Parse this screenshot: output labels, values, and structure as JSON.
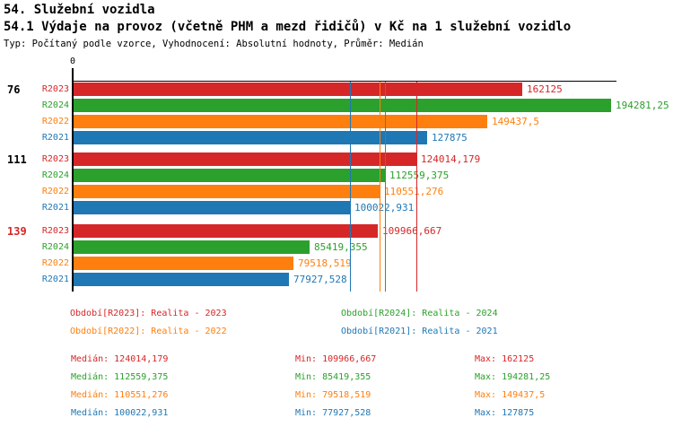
{
  "page": {
    "title": "54. Služební vozidla",
    "subtitle": "54.1 Výdaje na provoz (včetně PHM a mezd řidičů) v Kč na 1 služební vozidlo",
    "type_line": "Typ: Počítaný podle vzorce, Vyhodnocení: Absolutní hodnoty, Průměr: Medián"
  },
  "colors": {
    "R2023": "#d62728",
    "R2024": "#2ca02c",
    "R2022": "#ff7f0e",
    "R2021": "#1f77b4",
    "axis": "#000000",
    "group_label_default": "#000000",
    "group_label_highlight": "#d62728"
  },
  "chart_data": {
    "type": "bar",
    "orientation": "horizontal",
    "x_origin_label": "0",
    "x_range": [
      0,
      194281.25
    ],
    "grid": false,
    "series_order": [
      "R2023",
      "R2024",
      "R2022",
      "R2021"
    ],
    "groups": [
      {
        "label": "76",
        "highlight": false,
        "bars": [
          {
            "series": "R2023",
            "value": 162125,
            "value_label": "162125"
          },
          {
            "series": "R2024",
            "value": 194281.25,
            "value_label": "194281,25"
          },
          {
            "series": "R2022",
            "value": 149437.5,
            "value_label": "149437,5"
          },
          {
            "series": "R2021",
            "value": 127875,
            "value_label": "127875"
          }
        ]
      },
      {
        "label": "111",
        "highlight": false,
        "bars": [
          {
            "series": "R2023",
            "value": 124014.179,
            "value_label": "124014,179"
          },
          {
            "series": "R2024",
            "value": 112559.375,
            "value_label": "112559,375"
          },
          {
            "series": "R2022",
            "value": 110551.276,
            "value_label": "110551,276"
          },
          {
            "series": "R2021",
            "value": 100022.931,
            "value_label": "100022,931"
          }
        ]
      },
      {
        "label": "139",
        "highlight": true,
        "bars": [
          {
            "series": "R2023",
            "value": 109966.667,
            "value_label": "109966,667"
          },
          {
            "series": "R2024",
            "value": 85419.355,
            "value_label": "85419,355"
          },
          {
            "series": "R2022",
            "value": 79518.519,
            "value_label": "79518,519"
          },
          {
            "series": "R2021",
            "value": 77927.528,
            "value_label": "77927,528"
          }
        ]
      }
    ],
    "median_lines": [
      {
        "series": "R2023",
        "value": 124014.179
      },
      {
        "series": "R2024",
        "value": 112559.375
      },
      {
        "series": "R2022",
        "value": 110551.276
      },
      {
        "series": "R2021",
        "value": 100022.931
      }
    ]
  },
  "legend": {
    "items": [
      {
        "series": "R2023",
        "text": "Období[R2023]: Realita - 2023"
      },
      {
        "series": "R2024",
        "text": "Období[R2024]: Realita - 2024"
      },
      {
        "series": "R2022",
        "text": "Období[R2022]: Realita - 2022"
      },
      {
        "series": "R2021",
        "text": "Období[R2021]: Realita - 2021"
      }
    ]
  },
  "stats": {
    "rows": [
      {
        "series": "R2023",
        "median": "Medián: 124014,179",
        "min": "Min: 109966,667",
        "max": "Max: 162125"
      },
      {
        "series": "R2024",
        "median": "Medián: 112559,375",
        "min": "Min: 85419,355",
        "max": "Max: 194281,25"
      },
      {
        "series": "R2022",
        "median": "Medián: 110551,276",
        "min": "Min: 79518,519",
        "max": "Max: 149437,5"
      },
      {
        "series": "R2021",
        "median": "Medián: 100022,931",
        "min": "Min: 77927,528",
        "max": "Max: 127875"
      }
    ]
  }
}
